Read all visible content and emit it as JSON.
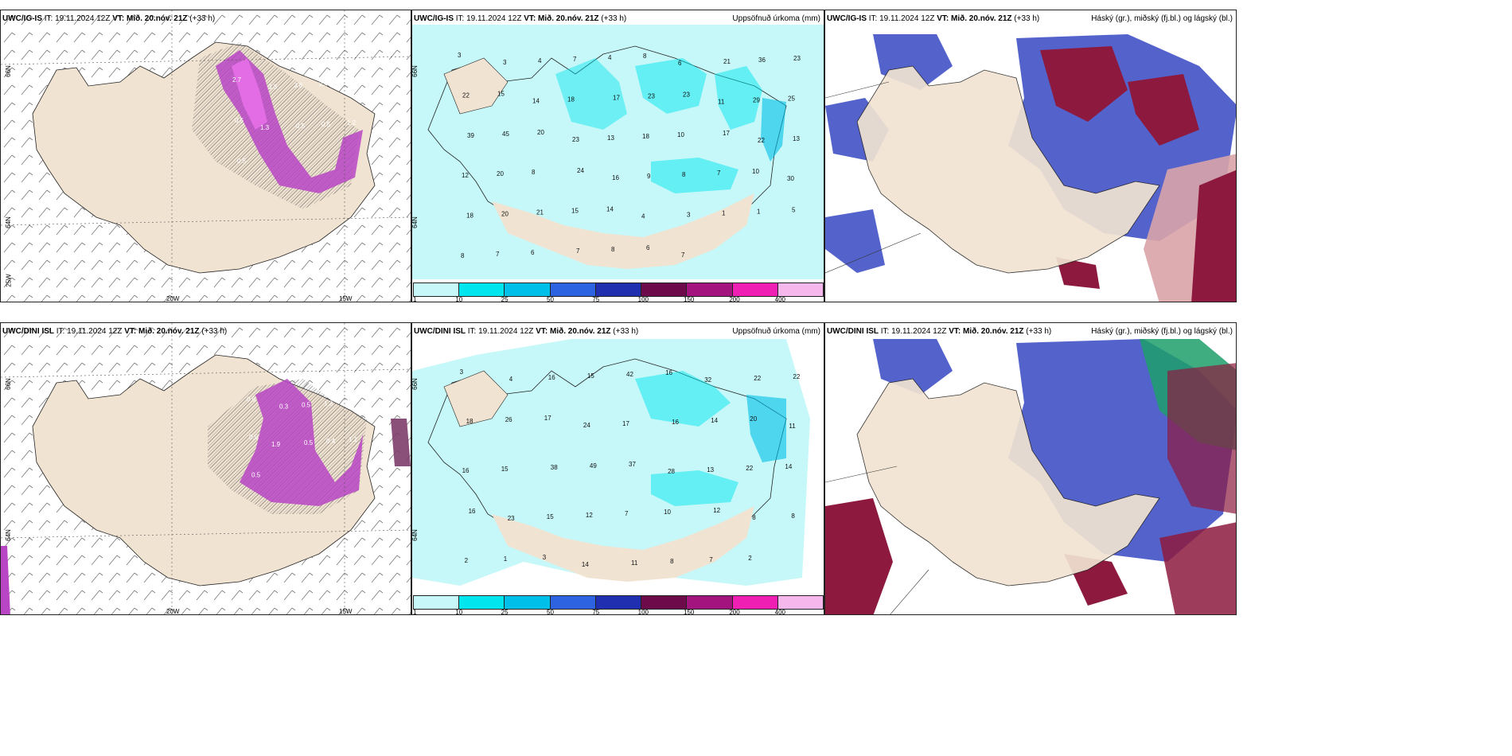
{
  "rows": [
    {
      "model": "UWC/IG-IS",
      "it_label": "IT:",
      "it_value": "19.11.2024 12Z",
      "vt_label": "VT:",
      "vt_value": "Mið. 20.nóv. 21Z",
      "lead": "(+33 h)"
    },
    {
      "model": "UWC/DINI ISL",
      "it_label": "IT:",
      "it_value": "19.11.2024 12Z",
      "vt_label": "VT:",
      "vt_value": "Mið. 20.nóv. 21Z",
      "lead": "(+33 h)"
    }
  ],
  "titles": {
    "precip": "Uppsöfnuð úrkoma (mm)",
    "cloud": "Háský (gr.), miðský (fj.bl.) og lágský (bl.)"
  },
  "axis": {
    "lat66": "66N",
    "lat64": "64N",
    "lon25": "25W",
    "lon20": "20W",
    "lon15": "15W"
  },
  "legend": {
    "ticks": [
      "1",
      "10",
      "25",
      "50",
      "75",
      "100",
      "150",
      "200",
      "400"
    ],
    "colors": [
      "#c8f7f9",
      "#00e5ee",
      "#00bfe8",
      "#2d62e0",
      "#1f2fb0",
      "#6d0a4a",
      "#a3147e",
      "#f01fb3",
      "#f5b7ec"
    ]
  },
  "precip_top": [
    "3",
    "3",
    "4",
    "7",
    "4",
    "8",
    "6",
    "21",
    "36",
    "23",
    "22",
    "15",
    "14",
    "18",
    "17",
    "23",
    "23",
    "11",
    "29",
    "25",
    "39",
    "45",
    "20",
    "23",
    "13",
    "18",
    "10",
    "17",
    "22",
    "13",
    "12",
    "20",
    "8",
    "24",
    "16",
    "9",
    "8",
    "7",
    "10",
    "30",
    "18",
    "20",
    "21",
    "15",
    "14",
    "4",
    "3",
    "1",
    "1",
    "5",
    "8",
    "7",
    "6",
    "7",
    "8",
    "6",
    "7"
  ],
  "precip_bottom": [
    "3",
    "4",
    "16",
    "15",
    "42",
    "16",
    "32",
    "22",
    "22",
    "18",
    "26",
    "17",
    "24",
    "17",
    "16",
    "14",
    "20",
    "11",
    "16",
    "15",
    "38",
    "49",
    "37",
    "28",
    "13",
    "22",
    "14",
    "16",
    "23",
    "15",
    "12",
    "7",
    "10",
    "12",
    "8",
    "8",
    "2",
    "1",
    "3",
    "14",
    "11",
    "8",
    "7",
    "2"
  ],
  "snow_top": [
    "2.7",
    "3.3",
    "3.8",
    "2.4",
    "0.5",
    "0.5",
    "1.3",
    "0.5",
    "0.5",
    "1.2",
    "0.5"
  ],
  "snow_bottom": [
    "0.6",
    "0.3",
    "0.5",
    "1.3",
    "1.4",
    "0.5",
    "1.9",
    "0.5",
    "0.4",
    "1.1",
    "0.5"
  ]
}
